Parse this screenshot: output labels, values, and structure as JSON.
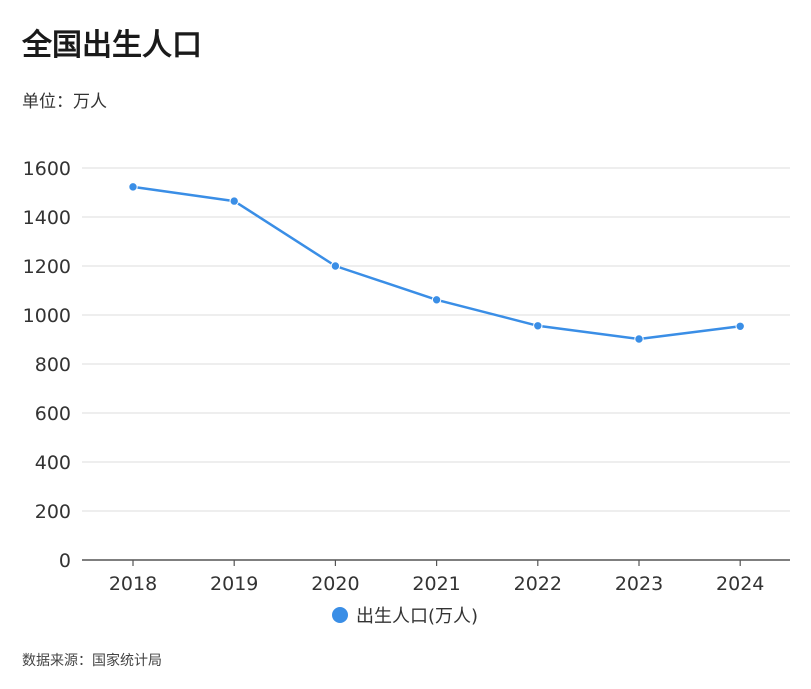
{
  "header": {
    "title": "全国出生人口",
    "unit": "单位：万人"
  },
  "footer": {
    "source": "数据来源：国家统计局"
  },
  "colors": {
    "series": "#3a8ee6",
    "grid": "#dddddd",
    "axis": "#555555"
  },
  "chart_data": {
    "type": "line",
    "title": "全国出生人口",
    "subtitle": "单位：万人",
    "xlabel": "",
    "ylabel": "",
    "categories": [
      "2018",
      "2019",
      "2020",
      "2021",
      "2022",
      "2023",
      "2024"
    ],
    "series": [
      {
        "name": "出生人口(万人)",
        "values": [
          1523,
          1465,
          1200,
          1062,
          956,
          902,
          954
        ]
      }
    ],
    "yticks": [
      0,
      200,
      400,
      600,
      800,
      1000,
      1200,
      1400,
      1600
    ],
    "ylim": [
      0,
      1600
    ],
    "grid": true,
    "legend": "bottom"
  }
}
